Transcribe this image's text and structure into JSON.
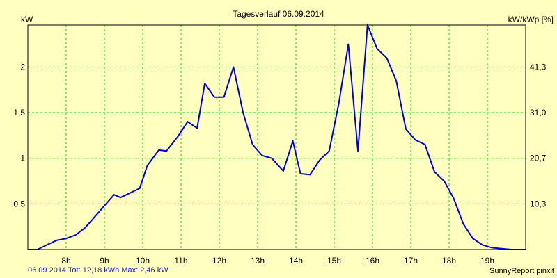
{
  "chart_data": {
    "type": "line",
    "title": "Tagesverlauf 06.09.2014",
    "ylabel_left": "kW",
    "ylabel_right": "kW/kWp [%]",
    "ylim": [
      0,
      2.46
    ],
    "yticks_left": [
      "0.5",
      "1",
      "1.5",
      "2"
    ],
    "yticks_left_values": [
      0.5,
      1,
      1.5,
      2
    ],
    "yticks_right": [
      "10,3",
      "20,7",
      "31,0",
      "41,3"
    ],
    "yticks_right_values": [
      0.5,
      1,
      1.5,
      2
    ],
    "xlim": [
      7.0,
      20.0
    ],
    "xticks": [
      "8h",
      "9h",
      "10h",
      "11h",
      "12h",
      "13h",
      "14h",
      "15h",
      "16h",
      "17h",
      "18h",
      "19h"
    ],
    "xticks_values": [
      8,
      9,
      10,
      11,
      12,
      13,
      14,
      15,
      16,
      17,
      18,
      19
    ],
    "grid": true,
    "line_color": "#0000dd",
    "grid_color": "#22cc22",
    "series": [
      {
        "x": [
          7.0,
          7.25,
          7.5,
          7.75,
          8.0,
          8.25,
          8.5,
          8.75,
          9.0,
          9.25,
          9.42,
          9.67,
          9.92,
          10.12,
          10.42,
          10.62,
          10.92,
          11.17,
          11.42,
          11.62,
          11.87,
          12.12,
          12.37,
          12.62,
          12.87,
          13.12,
          13.37,
          13.67,
          13.92,
          14.12,
          14.37,
          14.62,
          14.87,
          15.12,
          15.37,
          15.62,
          15.87,
          16.12,
          16.37,
          16.62,
          16.87,
          17.12,
          17.37,
          17.62,
          17.87,
          18.12,
          18.37,
          18.62,
          18.87,
          19.12,
          19.37,
          19.62,
          20.0
        ],
        "y": [
          0.0,
          0.0,
          0.05,
          0.1,
          0.12,
          0.16,
          0.24,
          0.36,
          0.48,
          0.6,
          0.57,
          0.62,
          0.67,
          0.92,
          1.09,
          1.08,
          1.24,
          1.4,
          1.33,
          1.82,
          1.67,
          1.67,
          2.0,
          1.5,
          1.15,
          1.03,
          1.0,
          0.86,
          1.19,
          0.83,
          0.82,
          0.98,
          1.08,
          1.6,
          2.25,
          1.08,
          2.46,
          2.2,
          2.1,
          1.85,
          1.32,
          1.2,
          1.15,
          0.85,
          0.75,
          0.56,
          0.28,
          0.12,
          0.05,
          0.02,
          0.01,
          0.0,
          0.0
        ]
      }
    ]
  },
  "footer": {
    "left": "06.09.2014 Tot: 12,18 kWh Max: 2,46 kW",
    "right": "SunnyReport pinxit"
  }
}
